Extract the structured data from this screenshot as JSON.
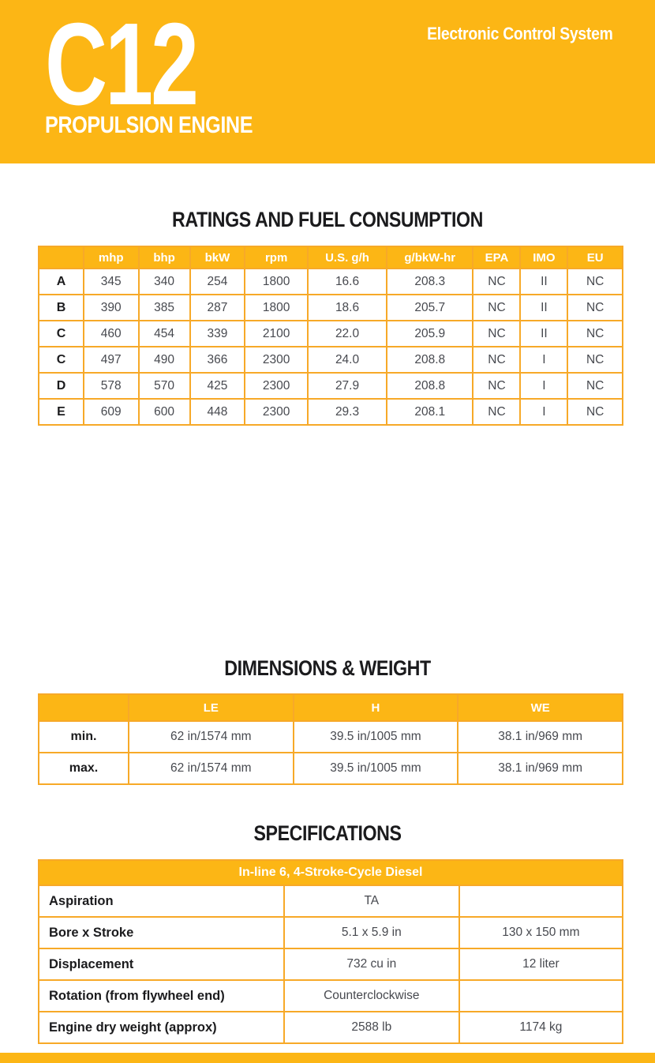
{
  "header": {
    "model": "C12",
    "subtitle": "PROPULSION ENGINE",
    "tagline": "Electronic Control System"
  },
  "ratings": {
    "title": "RATINGS AND FUEL CONSUMPTION",
    "columns": [
      "",
      "mhp",
      "bhp",
      "bkW",
      "rpm",
      "U.S. g/h",
      "g/bkW-hr",
      "EPA",
      "IMO",
      "EU"
    ],
    "rows": [
      [
        "A",
        "345",
        "340",
        "254",
        "1800",
        "16.6",
        "208.3",
        "NC",
        "II",
        "NC"
      ],
      [
        "B",
        "390",
        "385",
        "287",
        "1800",
        "18.6",
        "205.7",
        "NC",
        "II",
        "NC"
      ],
      [
        "C",
        "460",
        "454",
        "339",
        "2100",
        "22.0",
        "205.9",
        "NC",
        "II",
        "NC"
      ],
      [
        "C",
        "497",
        "490",
        "366",
        "2300",
        "24.0",
        "208.8",
        "NC",
        "I",
        "NC"
      ],
      [
        "D",
        "578",
        "570",
        "425",
        "2300",
        "27.9",
        "208.8",
        "NC",
        "I",
        "NC"
      ],
      [
        "E",
        "609",
        "600",
        "448",
        "2300",
        "29.3",
        "208.1",
        "NC",
        "I",
        "NC"
      ]
    ]
  },
  "dimensions": {
    "title": "DIMENSIONS & WEIGHT",
    "columns": [
      "",
      "LE",
      "H",
      "WE"
    ],
    "rows": [
      [
        "min.",
        "62 in/1574 mm",
        "39.5 in/1005 mm",
        "38.1 in/969 mm"
      ],
      [
        "max.",
        "62 in/1574 mm",
        "39.5 in/1005 mm",
        "38.1 in/969 mm"
      ]
    ]
  },
  "specifications": {
    "title": "SPECIFICATIONS",
    "span_header": "In-line 6, 4-Stroke-Cycle Diesel",
    "rows": [
      [
        "Aspiration",
        "TA",
        ""
      ],
      [
        "Bore x Stroke",
        "5.1 x 5.9 in",
        "130 x 150 mm"
      ],
      [
        "Displacement",
        "732 cu in",
        "12 liter"
      ],
      [
        "Rotation (from flywheel end)",
        "Counterclockwise",
        ""
      ],
      [
        "Engine dry weight (approx)",
        "2588 lb",
        "1174 kg"
      ]
    ]
  },
  "colors": {
    "brand_amber": "#FCB615",
    "table_border": "#F7A928",
    "title_ink": "#1B1B1D",
    "cell_text": "#47494F",
    "header_text": "#FFFFFF"
  }
}
